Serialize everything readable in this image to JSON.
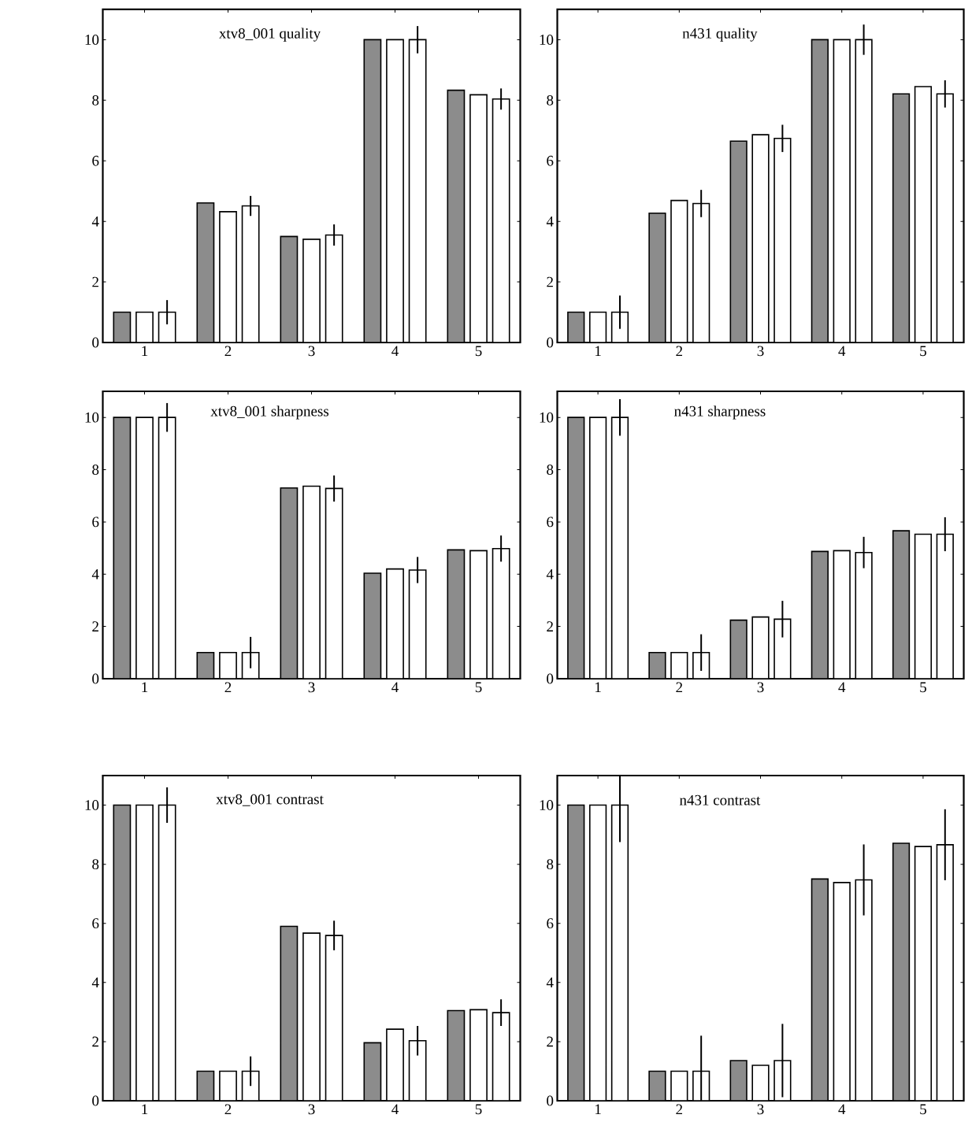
{
  "chart_data": [
    {
      "type": "bar",
      "title": "xtv8_001 quality",
      "categories": [
        "1",
        "2",
        "3",
        "4",
        "5"
      ],
      "ylim": [
        0,
        11
      ],
      "yticks": [
        0,
        2,
        4,
        6,
        8,
        10
      ],
      "series": [
        {
          "color": "#8c8c8c",
          "values": [
            1,
            4.61,
            3.5,
            10,
            8.33
          ]
        },
        {
          "color": "#ffffff",
          "values": [
            1,
            4.32,
            3.41,
            10,
            8.18
          ]
        },
        {
          "color": "#ffffff",
          "values": [
            1,
            4.51,
            3.55,
            10,
            8.04
          ],
          "errors": [
            0.4,
            0.33,
            0.35,
            0.45,
            0.35
          ]
        }
      ]
    },
    {
      "type": "bar",
      "title": "n431 quality",
      "categories": [
        "1",
        "2",
        "3",
        "4",
        "5"
      ],
      "ylim": [
        0,
        11
      ],
      "yticks": [
        0,
        2,
        4,
        6,
        8,
        10
      ],
      "series": [
        {
          "color": "#8c8c8c",
          "values": [
            1,
            4.27,
            6.65,
            10,
            8.21
          ]
        },
        {
          "color": "#ffffff",
          "values": [
            1,
            4.69,
            6.86,
            10,
            8.45
          ]
        },
        {
          "color": "#ffffff",
          "values": [
            1,
            4.59,
            6.74,
            10,
            8.21
          ],
          "errors": [
            0.55,
            0.45,
            0.45,
            0.5,
            0.45
          ]
        }
      ]
    },
    {
      "type": "bar",
      "title": "xtv8_001 sharpness",
      "categories": [
        "1",
        "2",
        "3",
        "4",
        "5"
      ],
      "ylim": [
        0,
        11
      ],
      "yticks": [
        0,
        2,
        4,
        6,
        8,
        10
      ],
      "series": [
        {
          "color": "#8c8c8c",
          "values": [
            10,
            1,
            7.3,
            4.04,
            4.93
          ]
        },
        {
          "color": "#ffffff",
          "values": [
            10,
            1,
            7.37,
            4.2,
            4.9
          ]
        },
        {
          "color": "#ffffff",
          "values": [
            10,
            1,
            7.28,
            4.16,
            4.98
          ],
          "errors": [
            0.55,
            0.6,
            0.5,
            0.5,
            0.5
          ]
        }
      ]
    },
    {
      "type": "bar",
      "title": "n431 sharpness",
      "categories": [
        "1",
        "2",
        "3",
        "4",
        "5"
      ],
      "ylim": [
        0,
        11
      ],
      "yticks": [
        0,
        2,
        4,
        6,
        8,
        10
      ],
      "series": [
        {
          "color": "#8c8c8c",
          "values": [
            10,
            1,
            2.24,
            4.87,
            5.66
          ]
        },
        {
          "color": "#ffffff",
          "values": [
            10,
            1,
            2.36,
            4.9,
            5.53
          ]
        },
        {
          "color": "#ffffff",
          "values": [
            10,
            1,
            2.28,
            4.83,
            5.53
          ],
          "errors": [
            0.7,
            0.7,
            0.7,
            0.6,
            0.65
          ]
        }
      ]
    },
    {
      "type": "bar",
      "title": "xtv8_001 contrast",
      "categories": [
        "1",
        "2",
        "3",
        "4",
        "5"
      ],
      "ylim": [
        0,
        11
      ],
      "yticks": [
        0,
        2,
        4,
        6,
        8,
        10
      ],
      "series": [
        {
          "color": "#8c8c8c",
          "values": [
            10,
            1,
            5.9,
            1.96,
            3.05
          ]
        },
        {
          "color": "#ffffff",
          "values": [
            10,
            1,
            5.67,
            2.42,
            3.08
          ]
        },
        {
          "color": "#ffffff",
          "values": [
            10,
            1,
            5.59,
            2.03,
            2.98
          ],
          "errors": [
            0.6,
            0.5,
            0.5,
            0.5,
            0.45
          ]
        }
      ]
    },
    {
      "type": "bar",
      "title": "n431 contrast",
      "categories": [
        "1",
        "2",
        "3",
        "4",
        "5"
      ],
      "ylim": [
        0,
        11
      ],
      "yticks": [
        0,
        2,
        4,
        6,
        8,
        10
      ],
      "series": [
        {
          "color": "#8c8c8c",
          "values": [
            10,
            1,
            1.36,
            7.5,
            8.71
          ]
        },
        {
          "color": "#ffffff",
          "values": [
            10,
            1,
            1.2,
            7.38,
            8.6
          ]
        },
        {
          "color": "#ffffff",
          "values": [
            10,
            1,
            1.36,
            7.47,
            8.66
          ],
          "errors": [
            [
              8.75,
              11
            ],
            1.2,
            1.24,
            1.2,
            1.2
          ]
        }
      ]
    }
  ]
}
